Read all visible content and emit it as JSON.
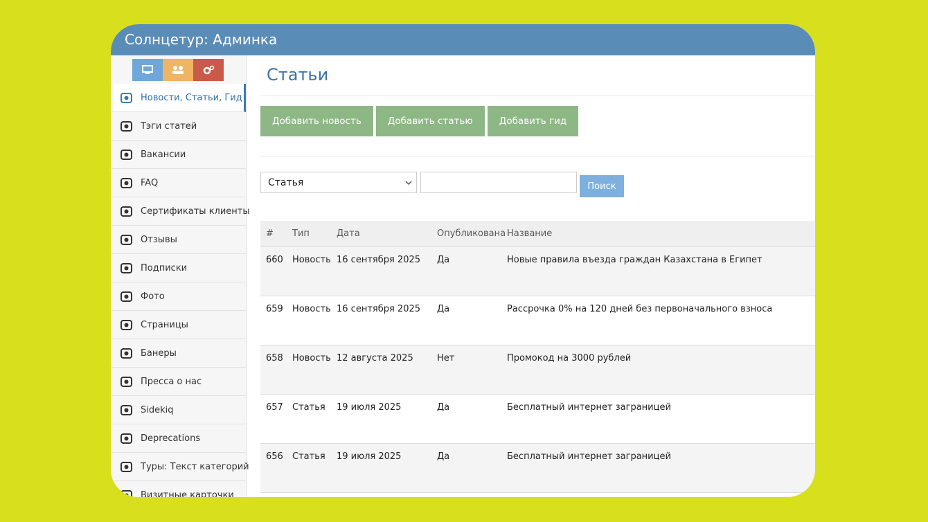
{
  "header": {
    "title": "Солнцетур: Админка"
  },
  "sidebar": {
    "items": [
      "Новости, Статьи, Гид",
      "Тэги статей",
      "Вакансии",
      "FAQ",
      "Сертификаты клиенты",
      "Отзывы",
      "Подписки",
      "Фото",
      "Страницы",
      "Банеры",
      "Пресса о нас",
      "Sidekiq",
      "Deprecations",
      "Туры: Текст категорий",
      "Визитные карточки"
    ]
  },
  "page": {
    "title": "Статьи",
    "buttons": [
      "Добавить новость",
      "Добавить статью",
      "Добавить гид"
    ]
  },
  "filter": {
    "select": "Статья",
    "button": "Поиск"
  },
  "table": {
    "columns": [
      "#",
      "Тип",
      "Дата",
      "Опубликована",
      "Название"
    ],
    "rows": [
      [
        "660",
        "Новость",
        "16 сентября 2025",
        "Да",
        "Новые правила въезда граждан Казахстана в Египет"
      ],
      [
        "659",
        "Новость",
        "16 сентября 2025",
        "Да",
        "Рассрочка 0% на 120 дней без первоначального взноса"
      ],
      [
        "658",
        "Новость",
        "12 августа 2025",
        "Нет",
        "Промокод на 3000 рублей"
      ],
      [
        "657",
        "Статья",
        "19 июля 2025",
        "Да",
        "Бесплатный интернет заграницей"
      ],
      [
        "656",
        "Статья",
        "19 июля 2025",
        "Да",
        "Бесплатный интернет заграницей"
      ]
    ]
  }
}
